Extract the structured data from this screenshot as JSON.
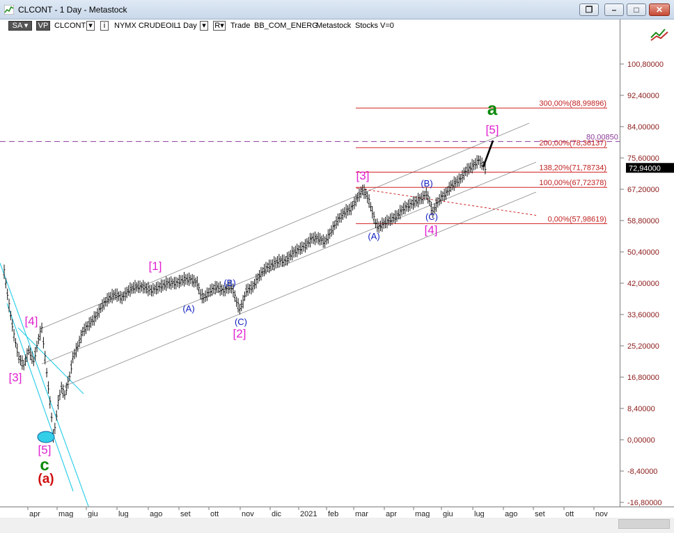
{
  "window": {
    "title": "CLCONT - 1 Day - Metastock",
    "buttons": [
      "❐",
      "–",
      "□",
      "✕"
    ]
  },
  "toolbar": {
    "sa": "SA",
    "vp": "VP",
    "symbol": "CLCONT",
    "exchange": "NYMX CRUDEOIL",
    "period": "1 Day",
    "trade": "Trade",
    "source": "BB_COM_ENERG",
    "brand": "Metastock",
    "stocks": "Stocks",
    "vol": "V=0"
  },
  "y_axis": {
    "ticks": [
      {
        "label": "100,80000",
        "value": 100.8
      },
      {
        "label": "92,40000",
        "value": 92.4
      },
      {
        "label": "84,00000",
        "value": 84.0
      },
      {
        "label": "75,60000",
        "value": 75.6
      },
      {
        "label": "67,20000",
        "value": 67.2
      },
      {
        "label": "58,80000",
        "value": 58.8
      },
      {
        "label": "50,40000",
        "value": 50.4
      },
      {
        "label": "42,00000",
        "value": 42.0
      },
      {
        "label": "33,60000",
        "value": 33.6
      },
      {
        "label": "25,20000",
        "value": 25.2
      },
      {
        "label": "16,80000",
        "value": 16.8
      },
      {
        "label": "8,40000",
        "value": 8.4
      },
      {
        "label": "0,00000",
        "value": 0.0
      },
      {
        "label": "-8,40000",
        "value": -8.4
      },
      {
        "label": "-16,80000",
        "value": -16.8
      }
    ],
    "last_price": "72,94000",
    "hline_label": "80,00850"
  },
  "x_axis": {
    "labels": [
      "apr",
      "mag",
      "giu",
      "lug",
      "ago",
      "set",
      "ott",
      "nov",
      "dic",
      "2021",
      "feb",
      "mar",
      "apr",
      "mag",
      "giu",
      "lug",
      "ago",
      "set",
      "ott",
      "nov"
    ]
  },
  "fib_levels": [
    {
      "label": "300,00%(88,99896)",
      "value": 88.99896
    },
    {
      "label": "200,00%(78,36137)",
      "value": 78.36137
    },
    {
      "label": "138,20%(71,78734)",
      "value": 71.78734
    },
    {
      "label": "100,00%(67,72378)",
      "value": 67.72378
    },
    {
      "label": "0,00%(57,98619)",
      "value": 57.98619
    }
  ],
  "wave_labels": [
    {
      "text": "a",
      "color": "#0a8a0a"
    },
    {
      "text": "[5]",
      "color": "#e020d0"
    },
    {
      "text": "[3]",
      "color": "#e020d0"
    },
    {
      "text": "(B)",
      "color": "#1020c0"
    },
    {
      "text": "(C)",
      "color": "#1020c0"
    },
    {
      "text": "[4]",
      "color": "#e020d0"
    },
    {
      "text": "(A)",
      "color": "#1020c0"
    },
    {
      "text": "[1]",
      "color": "#e020d0"
    },
    {
      "text": "(B)",
      "color": "#1020c0"
    },
    {
      "text": "(A)",
      "color": "#1020c0"
    },
    {
      "text": "(C)",
      "color": "#1020c0"
    },
    {
      "text": "[2]",
      "color": "#e020d0"
    },
    {
      "text": "[4]",
      "color": "#e020d0"
    },
    {
      "text": "[3]",
      "color": "#e020d0"
    },
    {
      "text": "[5]",
      "color": "#e020d0"
    },
    {
      "text": "c",
      "color": "#0a8a0a"
    },
    {
      "text": "(a)",
      "color": "#d01010"
    }
  ],
  "price_path": [
    [
      0,
      45
    ],
    [
      3,
      36
    ],
    [
      6,
      28
    ],
    [
      9,
      22
    ],
    [
      12,
      20
    ],
    [
      15,
      24
    ],
    [
      18,
      21
    ],
    [
      21,
      27
    ],
    [
      23,
      30
    ],
    [
      25,
      22
    ],
    [
      27,
      14
    ],
    [
      29,
      6
    ],
    [
      30,
      1
    ],
    [
      31,
      3
    ],
    [
      33,
      10
    ],
    [
      35,
      14
    ],
    [
      37,
      12
    ],
    [
      40,
      17
    ],
    [
      42,
      22
    ],
    [
      45,
      25
    ],
    [
      48,
      29
    ],
    [
      52,
      31
    ],
    [
      56,
      33
    ],
    [
      60,
      36
    ],
    [
      64,
      38
    ],
    [
      68,
      39
    ],
    [
      72,
      38
    ],
    [
      76,
      40
    ],
    [
      80,
      41
    ],
    [
      85,
      41
    ],
    [
      90,
      40
    ],
    [
      95,
      41
    ],
    [
      100,
      42
    ],
    [
      105,
      42
    ],
    [
      110,
      43
    ],
    [
      114,
      43
    ],
    [
      118,
      42
    ],
    [
      120,
      39
    ],
    [
      122,
      38
    ],
    [
      126,
      40
    ],
    [
      130,
      41
    ],
    [
      134,
      40
    ],
    [
      138,
      41
    ],
    [
      140,
      40
    ],
    [
      142,
      37
    ],
    [
      144,
      35
    ],
    [
      146,
      37
    ],
    [
      148,
      40
    ],
    [
      152,
      41
    ],
    [
      156,
      44
    ],
    [
      160,
      46
    ],
    [
      164,
      47
    ],
    [
      168,
      48
    ],
    [
      172,
      48
    ],
    [
      176,
      50
    ],
    [
      180,
      51
    ],
    [
      184,
      52
    ],
    [
      188,
      54
    ],
    [
      192,
      54
    ],
    [
      196,
      53
    ],
    [
      200,
      56
    ],
    [
      204,
      59
    ],
    [
      208,
      61
    ],
    [
      212,
      62
    ],
    [
      216,
      65
    ],
    [
      219,
      67
    ],
    [
      221,
      66
    ],
    [
      223,
      64
    ],
    [
      225,
      61
    ],
    [
      227,
      58
    ],
    [
      229,
      57
    ],
    [
      232,
      58
    ],
    [
      236,
      59
    ],
    [
      240,
      60
    ],
    [
      244,
      62
    ],
    [
      248,
      63
    ],
    [
      252,
      64
    ],
    [
      256,
      65
    ],
    [
      258,
      66
    ],
    [
      260,
      64
    ],
    [
      261,
      62
    ],
    [
      262,
      61
    ],
    [
      264,
      63
    ],
    [
      267,
      65
    ],
    [
      270,
      66
    ],
    [
      273,
      68
    ],
    [
      276,
      69
    ],
    [
      279,
      70
    ],
    [
      282,
      72
    ],
    [
      285,
      73
    ],
    [
      288,
      74
    ],
    [
      290,
      75
    ],
    [
      292,
      74
    ],
    [
      294,
      73
    ],
    [
      295,
      72.9
    ]
  ]
}
